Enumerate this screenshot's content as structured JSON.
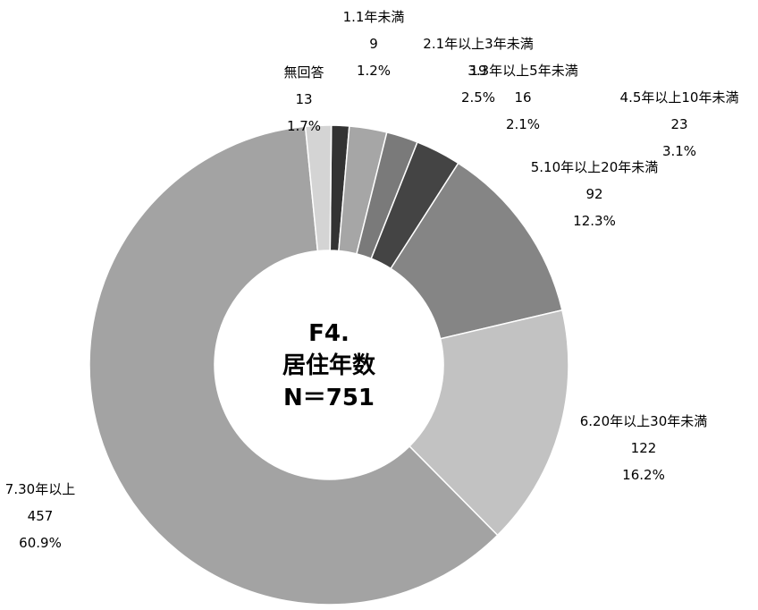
{
  "chart_data": {
    "type": "donut",
    "center_text": [
      "F4.",
      "居住年数",
      "N＝751"
    ],
    "categories": [
      "1.1年未満",
      "2.1年以上3年未満",
      "3.3年以上5年未満",
      "4.5年以上10年未満",
      "5.10年以上20年未満",
      "6.20年以上30年未満",
      "7.30年以上",
      "無回答"
    ],
    "values": [
      9,
      19,
      16,
      23,
      92,
      122,
      457,
      13
    ],
    "percent_labels": [
      "1.2%",
      "2.5%",
      "2.1%",
      "3.1%",
      "12.3%",
      "16.2%",
      "60.9%",
      "1.7%"
    ],
    "colors": [
      "#333333",
      "#a6a6a6",
      "#7a7a7a",
      "#444444",
      "#858585",
      "#c2c2c2",
      "#a3a3a3",
      "#d4d4d4"
    ]
  }
}
